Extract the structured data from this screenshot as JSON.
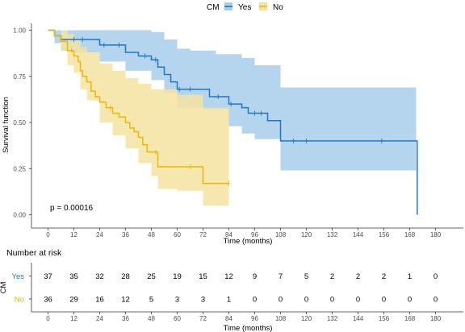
{
  "legend": {
    "title": "CM",
    "items": [
      {
        "label": "Yes",
        "color": "#1f77c4",
        "fill": "#a8cdea"
      },
      {
        "label": "No",
        "color": "#e8b90c",
        "fill": "#f3e3a0"
      }
    ]
  },
  "chart_data": {
    "type": "line",
    "subtype": "kaplan-meier",
    "xlabel": "Time (months)",
    "ylabel": "Survival function",
    "xlim": [
      0,
      180
    ],
    "ylim": [
      0,
      1
    ],
    "x_ticks": [
      0,
      12,
      24,
      36,
      48,
      60,
      72,
      84,
      96,
      108,
      120,
      132,
      144,
      156,
      168,
      180
    ],
    "y_ticks": [
      "0.00",
      "0.25",
      "0.50",
      "0.75",
      "1.00"
    ],
    "annotation": "p = 0.00016",
    "series": [
      {
        "name": "Yes",
        "color": "#1f77c4",
        "ci_color": "#a8cdea",
        "steps": [
          [
            0,
            1.0
          ],
          [
            3,
            0.97
          ],
          [
            6,
            0.95
          ],
          [
            12,
            0.95
          ],
          [
            24,
            0.92
          ],
          [
            30,
            0.92
          ],
          [
            36,
            0.88
          ],
          [
            42,
            0.86
          ],
          [
            48,
            0.84
          ],
          [
            51,
            0.8
          ],
          [
            54,
            0.76
          ],
          [
            57,
            0.72
          ],
          [
            60,
            0.68
          ],
          [
            72,
            0.68
          ],
          [
            75,
            0.64
          ],
          [
            84,
            0.6
          ],
          [
            90,
            0.58
          ],
          [
            93,
            0.55
          ],
          [
            96,
            0.55
          ],
          [
            102,
            0.51
          ],
          [
            108,
            0.4
          ],
          [
            171,
            0.4
          ],
          [
            171.5,
            0.0
          ]
        ],
        "censor": [
          [
            12,
            0.95
          ],
          [
            16,
            0.95
          ],
          [
            26,
            0.92
          ],
          [
            33,
            0.92
          ],
          [
            45,
            0.86
          ],
          [
            50,
            0.84
          ],
          [
            61,
            0.68
          ],
          [
            66,
            0.68
          ],
          [
            79,
            0.64
          ],
          [
            85,
            0.6
          ],
          [
            96,
            0.55
          ],
          [
            99,
            0.55
          ],
          [
            114,
            0.4
          ],
          [
            120,
            0.4
          ],
          [
            155,
            0.4
          ]
        ],
        "ci_upper": [
          [
            0,
            1.0
          ],
          [
            12,
            1.0
          ],
          [
            24,
            1.0
          ],
          [
            36,
            1.0
          ],
          [
            48,
            0.99
          ],
          [
            54,
            0.95
          ],
          [
            60,
            0.9
          ],
          [
            66,
            0.89
          ],
          [
            72,
            0.89
          ],
          [
            78,
            0.87
          ],
          [
            84,
            0.87
          ],
          [
            90,
            0.85
          ],
          [
            96,
            0.81
          ],
          [
            108,
            0.69
          ],
          [
            171,
            0.69
          ]
        ],
        "ci_lower": [
          [
            0,
            1.0
          ],
          [
            3,
            0.93
          ],
          [
            6,
            0.89
          ],
          [
            12,
            0.88
          ],
          [
            24,
            0.83
          ],
          [
            36,
            0.78
          ],
          [
            48,
            0.73
          ],
          [
            54,
            0.66
          ],
          [
            60,
            0.58
          ],
          [
            72,
            0.57
          ],
          [
            84,
            0.48
          ],
          [
            90,
            0.44
          ],
          [
            96,
            0.41
          ],
          [
            108,
            0.24
          ],
          [
            171,
            0.24
          ]
        ]
      },
      {
        "name": "No",
        "color": "#e8b90c",
        "ci_color": "#f3e3a0",
        "steps": [
          [
            0,
            1.0
          ],
          [
            3,
            0.97
          ],
          [
            6,
            0.94
          ],
          [
            9,
            0.89
          ],
          [
            12,
            0.86
          ],
          [
            14,
            0.83
          ],
          [
            15,
            0.78
          ],
          [
            16,
            0.75
          ],
          [
            18,
            0.72
          ],
          [
            20,
            0.67
          ],
          [
            22,
            0.64
          ],
          [
            24,
            0.61
          ],
          [
            27,
            0.58
          ],
          [
            30,
            0.55
          ],
          [
            33,
            0.53
          ],
          [
            36,
            0.5
          ],
          [
            38,
            0.47
          ],
          [
            40,
            0.45
          ],
          [
            42,
            0.42
          ],
          [
            44,
            0.38
          ],
          [
            46,
            0.34
          ],
          [
            48,
            0.34
          ],
          [
            51,
            0.26
          ],
          [
            60,
            0.26
          ],
          [
            72,
            0.17
          ],
          [
            84,
            0.17
          ]
        ],
        "censor": [
          [
            11,
            0.89
          ],
          [
            29,
            0.58
          ],
          [
            50,
            0.34
          ],
          [
            66,
            0.26
          ],
          [
            84,
            0.17
          ]
        ],
        "ci_upper": [
          [
            0,
            1.0
          ],
          [
            6,
            1.0
          ],
          [
            9,
            0.98
          ],
          [
            12,
            0.95
          ],
          [
            15,
            0.91
          ],
          [
            18,
            0.88
          ],
          [
            24,
            0.82
          ],
          [
            30,
            0.78
          ],
          [
            36,
            0.74
          ],
          [
            42,
            0.71
          ],
          [
            48,
            0.68
          ],
          [
            60,
            0.65
          ],
          [
            72,
            0.58
          ],
          [
            84,
            0.58
          ]
        ],
        "ci_lower": [
          [
            0,
            1.0
          ],
          [
            6,
            0.89
          ],
          [
            9,
            0.81
          ],
          [
            12,
            0.77
          ],
          [
            15,
            0.68
          ],
          [
            18,
            0.62
          ],
          [
            24,
            0.5
          ],
          [
            30,
            0.43
          ],
          [
            36,
            0.36
          ],
          [
            42,
            0.28
          ],
          [
            48,
            0.21
          ],
          [
            51,
            0.14
          ],
          [
            60,
            0.13
          ],
          [
            72,
            0.05
          ],
          [
            84,
            0.05
          ]
        ]
      }
    ],
    "risk_table": {
      "title": "Number at risk",
      "ylabel": "CM",
      "xlabel": "Time (months)",
      "times": [
        0,
        12,
        24,
        36,
        48,
        60,
        72,
        84,
        96,
        108,
        120,
        132,
        144,
        156,
        168,
        180
      ],
      "rows": [
        {
          "name": "Yes",
          "color": "#1f77c4",
          "values": [
            37,
            35,
            32,
            28,
            25,
            19,
            15,
            12,
            9,
            7,
            5,
            2,
            2,
            2,
            1,
            0
          ]
        },
        {
          "name": "No",
          "color": "#e8b90c",
          "values": [
            36,
            29,
            16,
            12,
            5,
            3,
            3,
            1,
            0,
            0,
            0,
            0,
            0,
            0,
            0,
            0
          ]
        }
      ]
    }
  }
}
